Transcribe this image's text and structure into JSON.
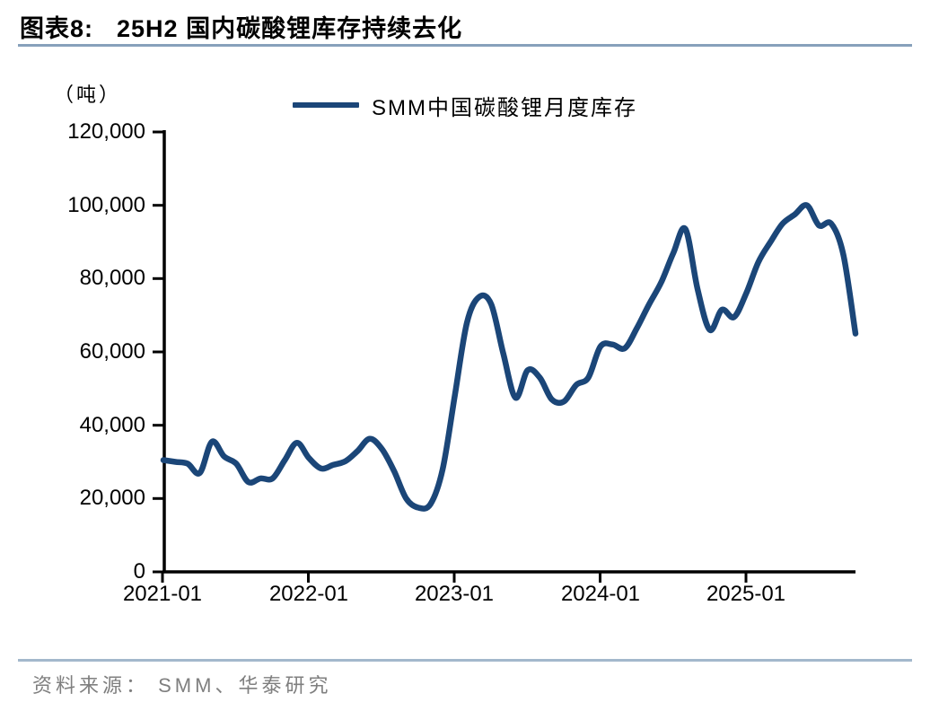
{
  "header": {
    "title_prefix": "图表8:",
    "title_text": "25H2 国内碳酸锂库存持续去化"
  },
  "legend": {
    "series_label": "SMM中国碳酸锂月度库存"
  },
  "axes": {
    "unit_label": "（吨）",
    "y_labels": [
      "120,000",
      "100,000",
      "80,000",
      "60,000",
      "40,000",
      "20,000",
      "0"
    ],
    "x_labels": [
      "2021-01",
      "2022-01",
      "2023-01",
      "2024-01",
      "2025-01"
    ]
  },
  "footer": {
    "source": "资料来源： SMM、华泰研究"
  },
  "colors": {
    "line": "#1B4678",
    "title_underline": "#87A1BB",
    "footer_divider": "#A3B8CC",
    "footer_text": "#7F7F7F",
    "axis": "#000000"
  },
  "chart_data": {
    "type": "line",
    "title": "25H2 国内碳酸锂库存持续去化",
    "ylabel": "（吨）",
    "ylim": [
      0,
      120000
    ],
    "ytick_step": 20000,
    "grid": false,
    "legend_position": "top-center",
    "series_name": "SMM中国碳酸锂月度库存",
    "x": [
      "2021-01",
      "2021-02",
      "2021-03",
      "2021-04",
      "2021-05",
      "2021-06",
      "2021-07",
      "2021-08",
      "2021-09",
      "2021-10",
      "2021-11",
      "2021-12",
      "2022-01",
      "2022-02",
      "2022-03",
      "2022-04",
      "2022-05",
      "2022-06",
      "2022-07",
      "2022-08",
      "2022-09",
      "2022-10",
      "2022-11",
      "2022-12",
      "2023-01",
      "2023-02",
      "2023-03",
      "2023-04",
      "2023-05",
      "2023-06",
      "2023-07",
      "2023-08",
      "2023-09",
      "2023-10",
      "2023-11",
      "2023-12",
      "2024-01",
      "2024-02",
      "2024-03",
      "2024-04",
      "2024-05",
      "2024-06",
      "2024-07",
      "2024-08",
      "2024-09",
      "2024-10",
      "2024-11",
      "2024-12",
      "2025-01",
      "2025-02",
      "2025-03",
      "2025-04",
      "2025-05",
      "2025-06",
      "2025-07",
      "2025-08",
      "2025-09",
      "2025-10"
    ],
    "values": [
      30500,
      30000,
      29500,
      27000,
      35500,
      31500,
      29500,
      24500,
      25500,
      25500,
      30500,
      35200,
      31000,
      28200,
      29200,
      30200,
      33000,
      36300,
      33500,
      27500,
      20000,
      17500,
      18500,
      28000,
      48000,
      68000,
      75000,
      73000,
      59500,
      47500,
      55000,
      53000,
      47000,
      46500,
      51000,
      53000,
      61500,
      62000,
      61000,
      66500,
      73000,
      79000,
      87000,
      93500,
      77000,
      66000,
      71500,
      69500,
      76000,
      84500,
      90000,
      95000,
      97500,
      100000,
      94500,
      95000,
      86500,
      65000
    ]
  }
}
